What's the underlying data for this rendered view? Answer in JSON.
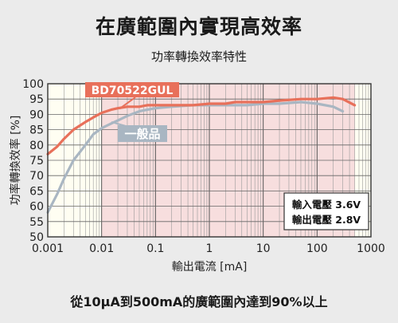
{
  "headline": "在廣範圍內實現高效率",
  "caption": "從10μA到500mA的廣範圍內達到90%以上",
  "chart_data": {
    "type": "line",
    "title": "功率轉換效率特性",
    "xlabel": "輸出電流 [mA]",
    "ylabel": "功率轉換效率 [%]",
    "x_scale": "log",
    "xlim": [
      0.001,
      1000
    ],
    "ylim": [
      50,
      100
    ],
    "x_ticks": [
      0.001,
      0.01,
      0.1,
      1,
      10,
      100,
      1000
    ],
    "x_tick_labels": [
      "0.001",
      "0.01",
      "0.1",
      "1",
      "10",
      "100",
      "1000"
    ],
    "y_ticks": [
      50,
      55,
      60,
      65,
      70,
      75,
      80,
      85,
      90,
      95,
      100
    ],
    "grid": true,
    "highlight_range": [
      0.01,
      500
    ],
    "conditions": [
      "輸入電壓 3.6V",
      "輸出電壓 2.8V"
    ],
    "series": [
      {
        "name": "BD70522GUL",
        "color": "#e8705a",
        "x": [
          0.001,
          0.0015,
          0.002,
          0.003,
          0.005,
          0.007,
          0.01,
          0.015,
          0.02,
          0.03,
          0.05,
          0.07,
          0.1,
          0.2,
          0.5,
          1,
          2,
          3,
          5,
          10,
          20,
          50,
          100,
          200,
          300,
          500
        ],
        "y": [
          77,
          79.5,
          82,
          85,
          87.5,
          89,
          90.5,
          91.5,
          92,
          92.5,
          92.5,
          93,
          93,
          93,
          93,
          93.5,
          93.5,
          94,
          94,
          94,
          94.5,
          95,
          95,
          95.5,
          95,
          93
        ]
      },
      {
        "name": "一般品",
        "color": "#a9b6c2",
        "x": [
          0.001,
          0.0015,
          0.002,
          0.003,
          0.005,
          0.007,
          0.01,
          0.015,
          0.02,
          0.03,
          0.05,
          0.07,
          0.1,
          0.2,
          0.5,
          1,
          2,
          3,
          5,
          10,
          20,
          50,
          100,
          200,
          300
        ],
        "y": [
          58,
          64,
          69,
          75,
          80,
          83.5,
          85.5,
          87,
          88,
          89.5,
          91,
          91.5,
          92,
          92.5,
          93,
          93,
          93,
          93,
          93,
          93.5,
          93.5,
          94,
          93.5,
          92.5,
          91
        ]
      }
    ]
  }
}
